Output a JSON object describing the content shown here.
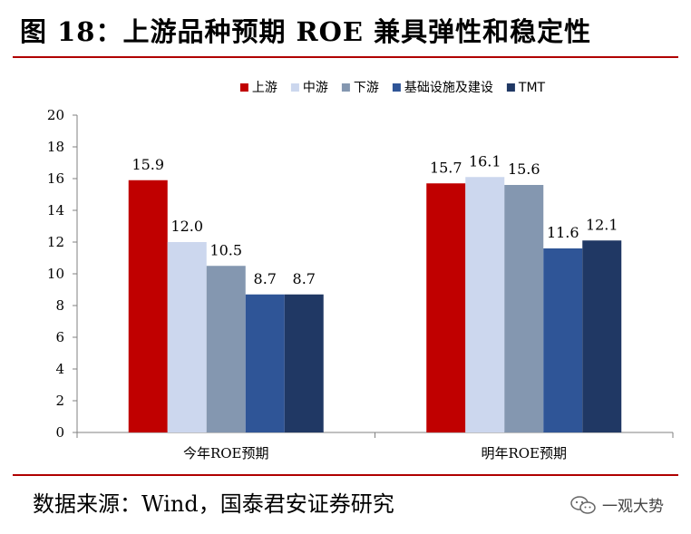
{
  "title": "图 18：上游品种预期 ROE 兼具弹性和稳定性",
  "source": "数据来源：Wind，国泰君安证券研究",
  "watermark": "一观大势",
  "chart_data": {
    "type": "bar",
    "categories": [
      "今年ROE预期",
      "明年ROE预期"
    ],
    "series": [
      {
        "name": "上游",
        "values": [
          15.9,
          15.7
        ],
        "color": "#c00000"
      },
      {
        "name": "中游",
        "values": [
          12.0,
          16.1
        ],
        "color": "#ccd7ee"
      },
      {
        "name": "下游",
        "values": [
          10.5,
          15.6
        ],
        "color": "#8497b0"
      },
      {
        "name": "基础设施及建设",
        "values": [
          8.7,
          11.6
        ],
        "color": "#2f5597"
      },
      {
        "name": "TMT",
        "values": [
          8.7,
          12.1
        ],
        "color": "#203864"
      }
    ],
    "ylim": [
      0,
      20
    ],
    "yticks": [
      0,
      2,
      4,
      6,
      8,
      10,
      12,
      14,
      16,
      18,
      20
    ],
    "legend": "top",
    "grid": false
  }
}
